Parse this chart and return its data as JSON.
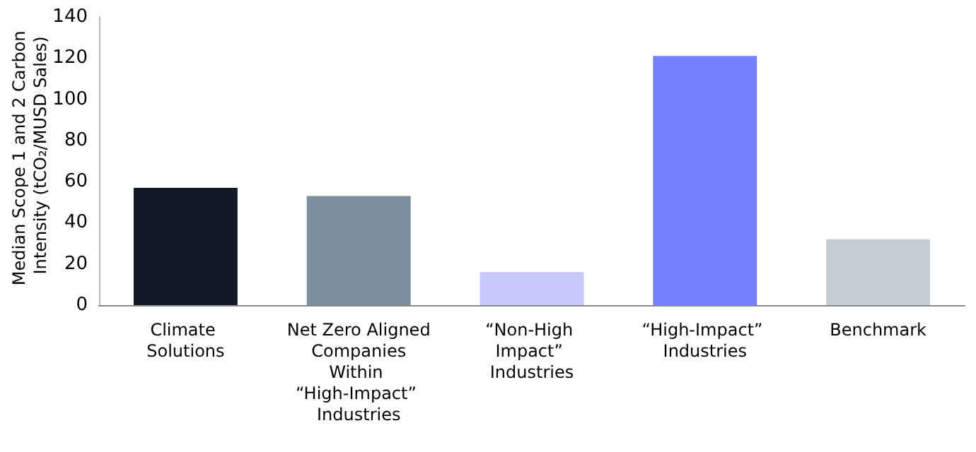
{
  "chart_data": {
    "type": "bar",
    "ylabel": "Median Scope 1 and 2 Carbon Intensity (tCO₂/MUSD Sales)",
    "categories": [
      "Climate Solutions",
      "Net Zero Aligned Companies Within “High-Impact” Industries",
      "“Non-High Impact” Industries",
      "“High-Impact” Industries",
      "Benchmark"
    ],
    "values": [
      57,
      53,
      16,
      121,
      32
    ],
    "colors": [
      "#0f1a26",
      "#7b8f9c",
      "#c4c8fb",
      "#777ffe",
      "#c3cdd6"
    ],
    "ylim": [
      0,
      140
    ],
    "yticks": [
      0,
      20,
      40,
      60,
      80,
      100,
      120,
      140
    ],
    "grid": false
  }
}
